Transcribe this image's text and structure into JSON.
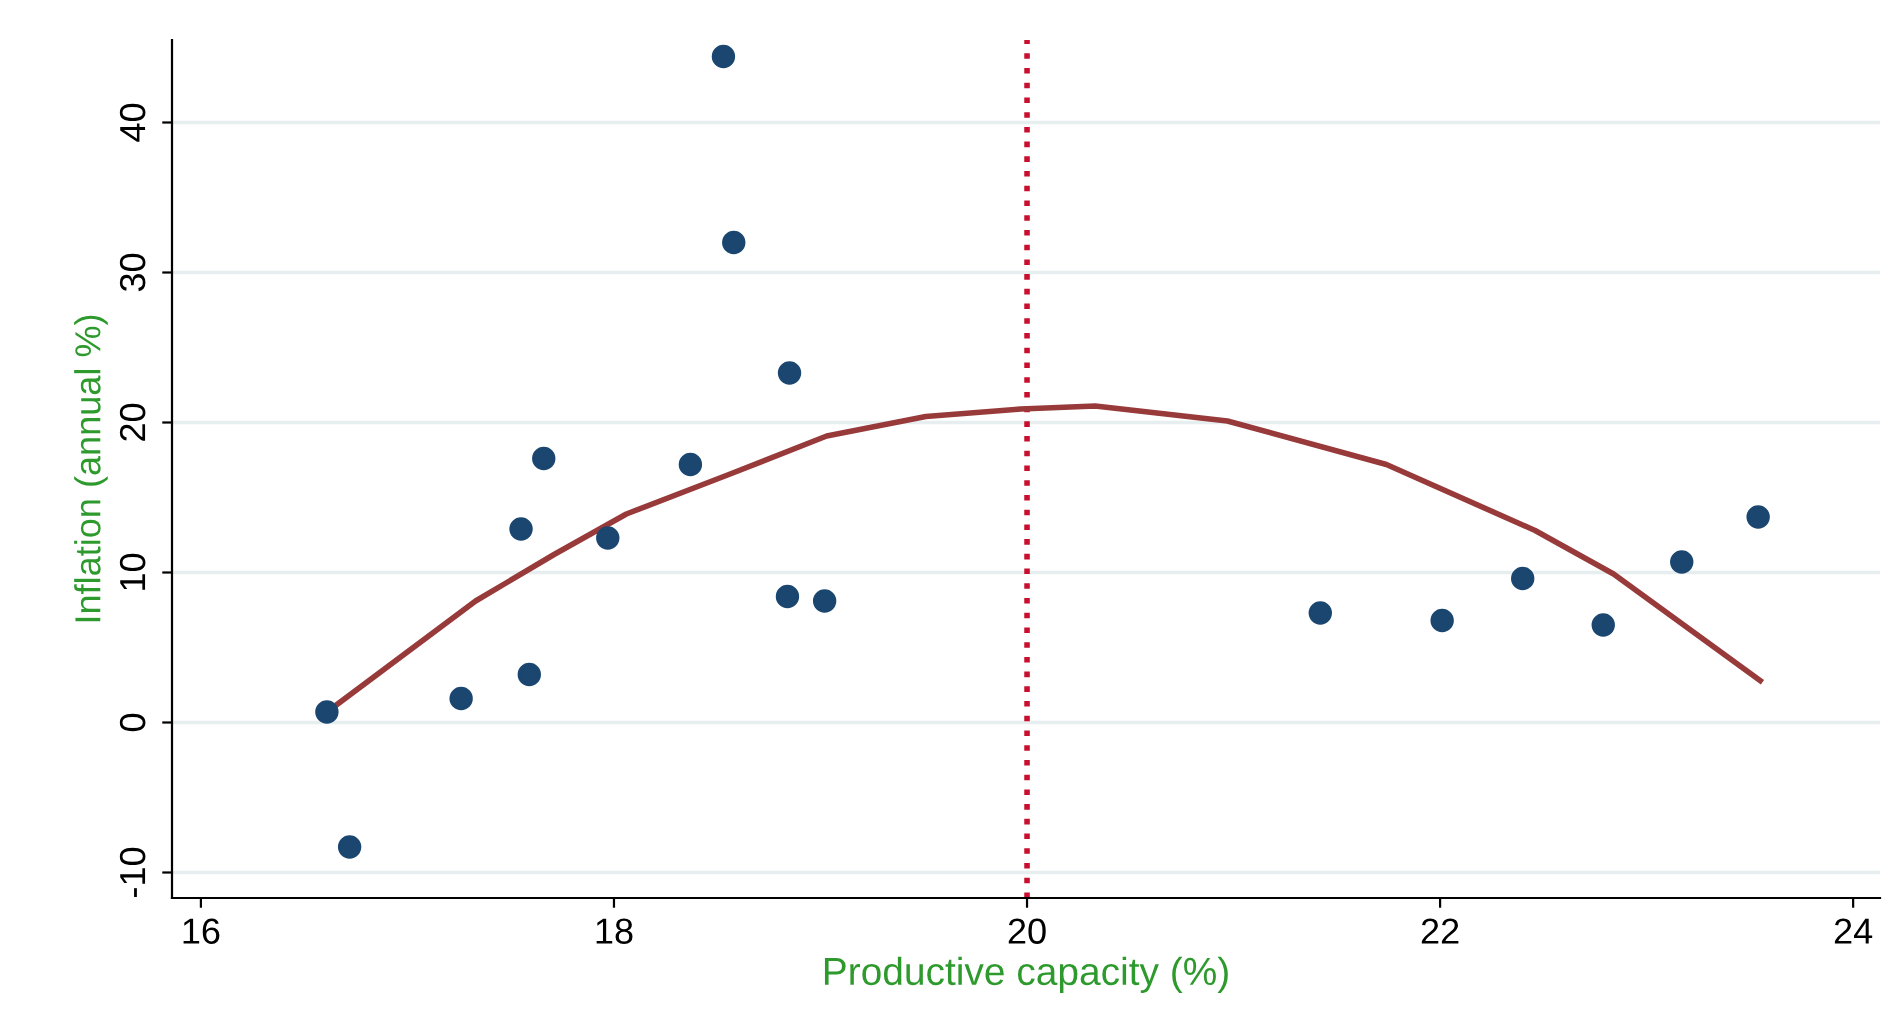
{
  "chart_data": {
    "type": "scatter",
    "xlabel": "Productive capacity (%)",
    "ylabel": "Inflation (annual %)",
    "xlim": [
      15.86,
      24.13
    ],
    "ylim": [
      -11.7,
      45.5
    ],
    "xticks": [
      16,
      18,
      20,
      22,
      24
    ],
    "yticks": [
      -10,
      0,
      10,
      20,
      30,
      40
    ],
    "grid": "y",
    "marker": "circle",
    "series": [
      {
        "color": "#1a4670",
        "x": [
          16.61,
          16.72,
          17.26,
          17.55,
          17.59,
          17.66,
          17.97,
          18.37,
          18.53,
          18.58,
          18.85,
          18.84,
          19.02,
          21.42,
          22.01,
          22.4,
          22.79,
          23.17,
          23.54
        ],
        "values": [
          0.7,
          -8.3,
          1.6,
          12.9,
          3.2,
          17.6,
          12.3,
          17.2,
          44.4,
          32.0,
          23.3,
          8.4,
          8.1,
          7.3,
          6.8,
          9.6,
          6.5,
          10.7,
          13.7
        ]
      },
      {
        "type": "line",
        "color": "#983a3a",
        "marker": "none",
        "x": [
          16.61,
          17.33,
          17.71,
          18.06,
          18.55,
          19.03,
          19.51,
          19.97,
          20.33,
          20.97,
          21.74,
          22.46,
          22.84,
          23.55
        ],
        "values": [
          0.7,
          8.1,
          11.2,
          13.9,
          16.5,
          19.1,
          20.4,
          20.9,
          21.1,
          20.1,
          17.2,
          12.8,
          9.9,
          2.8
        ]
      }
    ],
    "ref_lines": [
      {
        "axis": "x",
        "value": 20,
        "color": "#c8102e",
        "line_style": "dotted"
      }
    ]
  }
}
